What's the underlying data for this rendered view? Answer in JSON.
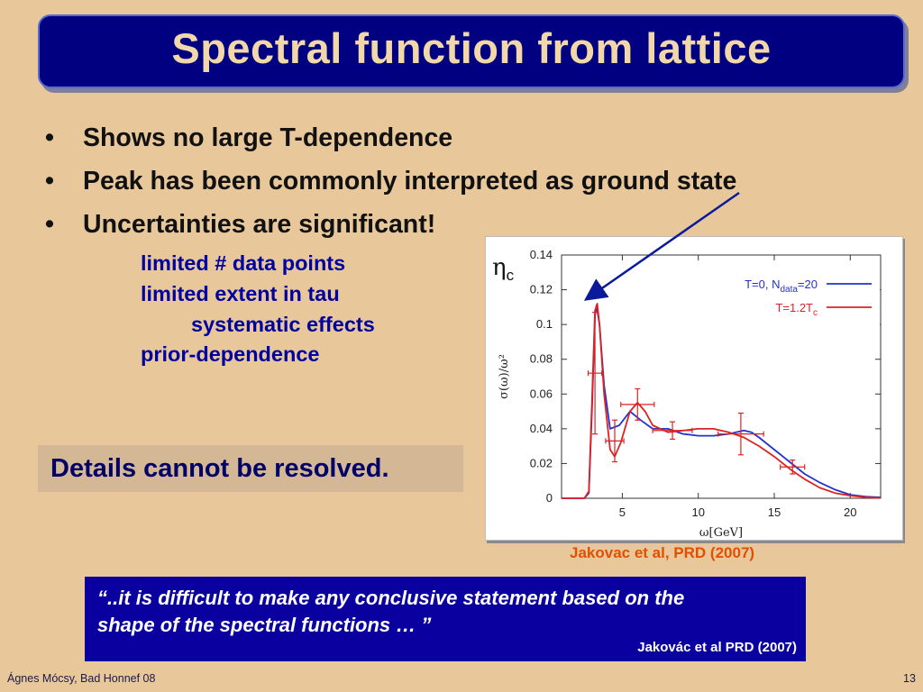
{
  "slide": {
    "title": "Spectral function from lattice",
    "bullets": [
      "Shows no large T-dependence",
      "Peak has been commonly interpreted as ground state",
      "Uncertainties are significant!"
    ],
    "sub_items": [
      "limited # data points",
      "limited extent in tau",
      "systematic effects",
      "prior-dependence"
    ],
    "details_box": "Details cannot be resolved.",
    "eta_label": "η",
    "eta_sub": "c",
    "citation": "Jakovac et al, PRD (2007)",
    "quote_line1": "“..it is difficult to make any conclusive statement based on the",
    "quote_line2": "shape of the spectral functions … ”",
    "quote_source": "Jakovác et al PRD (2007)",
    "footer_left": "Ágnes Mócsy, Bad Honnef 08",
    "page_number": "13",
    "colors": {
      "title_bg": "#000080",
      "title_text": "#f2d7a8",
      "background": "#e8c89a",
      "sub_text": "#0000a0",
      "citation": "#e05000",
      "quote_bg": "#0a00a0"
    }
  },
  "chart_data": {
    "type": "line",
    "xlabel": "ω[GeV]",
    "ylabel": "σ(ω)/ω²",
    "xlim": [
      1,
      22
    ],
    "ylim": [
      0,
      0.14
    ],
    "x_ticks": [
      5,
      10,
      15,
      20
    ],
    "x_tick_labels": [
      "5",
      "10",
      "15",
      "20"
    ],
    "y_ticks": [
      0,
      0.02,
      0.04,
      0.06,
      0.08,
      0.1,
      0.12,
      0.14
    ],
    "y_tick_labels": [
      "0",
      "0.02",
      "0.04",
      "0.06",
      "0.08",
      "0.1",
      "0.12",
      "0.14"
    ],
    "legend_position": "top-right",
    "series": [
      {
        "name": "T=0, N_data=20",
        "label_main": "T=0, N",
        "label_sub": "data",
        "label_tail": "=20",
        "color": "#2233cc",
        "x": [
          1.0,
          2.5,
          2.8,
          3.0,
          3.2,
          3.3,
          3.5,
          3.8,
          4.2,
          4.8,
          5.5,
          6.2,
          7.0,
          8.0,
          9.0,
          10.0,
          11.0,
          12.0,
          13.0,
          13.5,
          14.0,
          15.0,
          16.0,
          17.0,
          18.0,
          19.0,
          20.0,
          21.0,
          22.0
        ],
        "y": [
          0,
          0,
          0.003,
          0.05,
          0.105,
          0.111,
          0.1,
          0.065,
          0.04,
          0.042,
          0.05,
          0.045,
          0.04,
          0.04,
          0.037,
          0.036,
          0.036,
          0.037,
          0.039,
          0.038,
          0.035,
          0.028,
          0.021,
          0.014,
          0.009,
          0.005,
          0.002,
          0.001,
          0.0005
        ]
      },
      {
        "name": "T=1.2T_c",
        "label_main": "T=1.2T",
        "label_sub": "c",
        "label_tail": "",
        "color": "#dd2222",
        "x": [
          1.0,
          2.5,
          2.8,
          3.0,
          3.2,
          3.35,
          3.5,
          3.8,
          4.2,
          4.5,
          4.9,
          5.5,
          6.0,
          6.5,
          7.0,
          8.0,
          9.0,
          10.0,
          11.0,
          12.0,
          13.0,
          14.0,
          15.0,
          16.0,
          17.0,
          18.0,
          19.0,
          20.0,
          21.0,
          22.0
        ],
        "y": [
          0,
          0,
          0.004,
          0.055,
          0.108,
          0.112,
          0.1,
          0.06,
          0.028,
          0.024,
          0.032,
          0.05,
          0.055,
          0.05,
          0.042,
          0.038,
          0.039,
          0.04,
          0.04,
          0.038,
          0.035,
          0.03,
          0.024,
          0.017,
          0.011,
          0.006,
          0.003,
          0.0015,
          0.0006,
          0.0002
        ]
      }
    ],
    "error_bars": [
      {
        "x": 3.2,
        "y": 0.072,
        "xerr": 0.45,
        "yerr": 0.035
      },
      {
        "x": 4.5,
        "y": 0.033,
        "xerr": 0.6,
        "yerr": 0.012
      },
      {
        "x": 6.0,
        "y": 0.054,
        "xerr": 1.1,
        "yerr": 0.009
      },
      {
        "x": 8.3,
        "y": 0.039,
        "xerr": 1.3,
        "yerr": 0.005
      },
      {
        "x": 12.8,
        "y": 0.037,
        "xerr": 1.5,
        "yerr": 0.012
      },
      {
        "x": 16.2,
        "y": 0.018,
        "xerr": 0.8,
        "yerr": 0.004
      }
    ],
    "annotation_arrow": {
      "from_label": "Peak has been commonly interpreted as ground state",
      "to_x": 3.3,
      "to_y": 0.113
    }
  }
}
